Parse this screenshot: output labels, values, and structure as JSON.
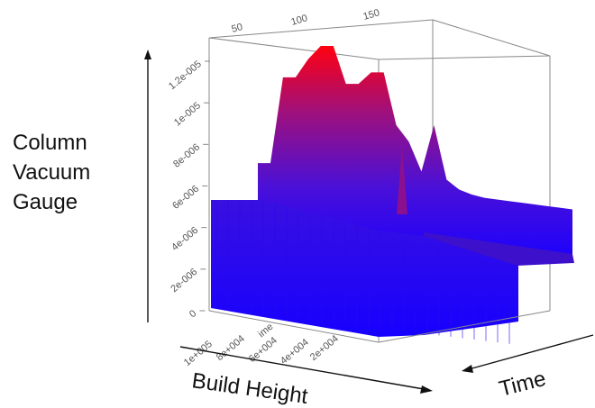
{
  "chart_data": {
    "type": "surface3d",
    "zlabel_lines": [
      "Column",
      "Vacuum",
      "Gauge"
    ],
    "xlabel": "Build Height",
    "ylabel": "Time",
    "x_axis_title_small": "ime",
    "z_ticks": [
      "0",
      "2e-006",
      "4e-006",
      "6e-006",
      "8e-006",
      "1e-005",
      "1.2e-005"
    ],
    "z_tick_values": [
      0,
      2e-06,
      4e-06,
      6e-06,
      8e-06,
      1e-05,
      1.2e-05
    ],
    "zlim": [
      0,
      1.2e-05
    ],
    "top_ticks": [
      "50",
      "100",
      "150"
    ],
    "bottom_ticks": [
      "1e+005",
      "8e+004",
      "6e+004",
      "4e+004",
      "2e+004"
    ],
    "colors": {
      "low": "#1000ff",
      "high": "#ff0010",
      "box": "#777777",
      "axis_arrow": "#111111"
    },
    "surface_profile": {
      "description": "approximate vacuum value along the back-to-front extent",
      "values": [
        5.5e-06,
        5.5e-06,
        1.07e-05,
        1.07e-05,
        1.18e-05,
        1.26e-05,
        1.26e-05,
        1.03e-05,
        1.03e-05,
        1.1e-05,
        1.1e-05,
        7.8e-06,
        6.8e-06,
        5e-06,
        7.8e-06,
        4.5e-06,
        3.9e-06,
        3.6e-06,
        3.4e-06,
        3.3e-06,
        3.2e-06,
        3.1e-06,
        3e-06,
        2.9e-06,
        2.8e-06,
        2.7e-06
      ]
    }
  }
}
